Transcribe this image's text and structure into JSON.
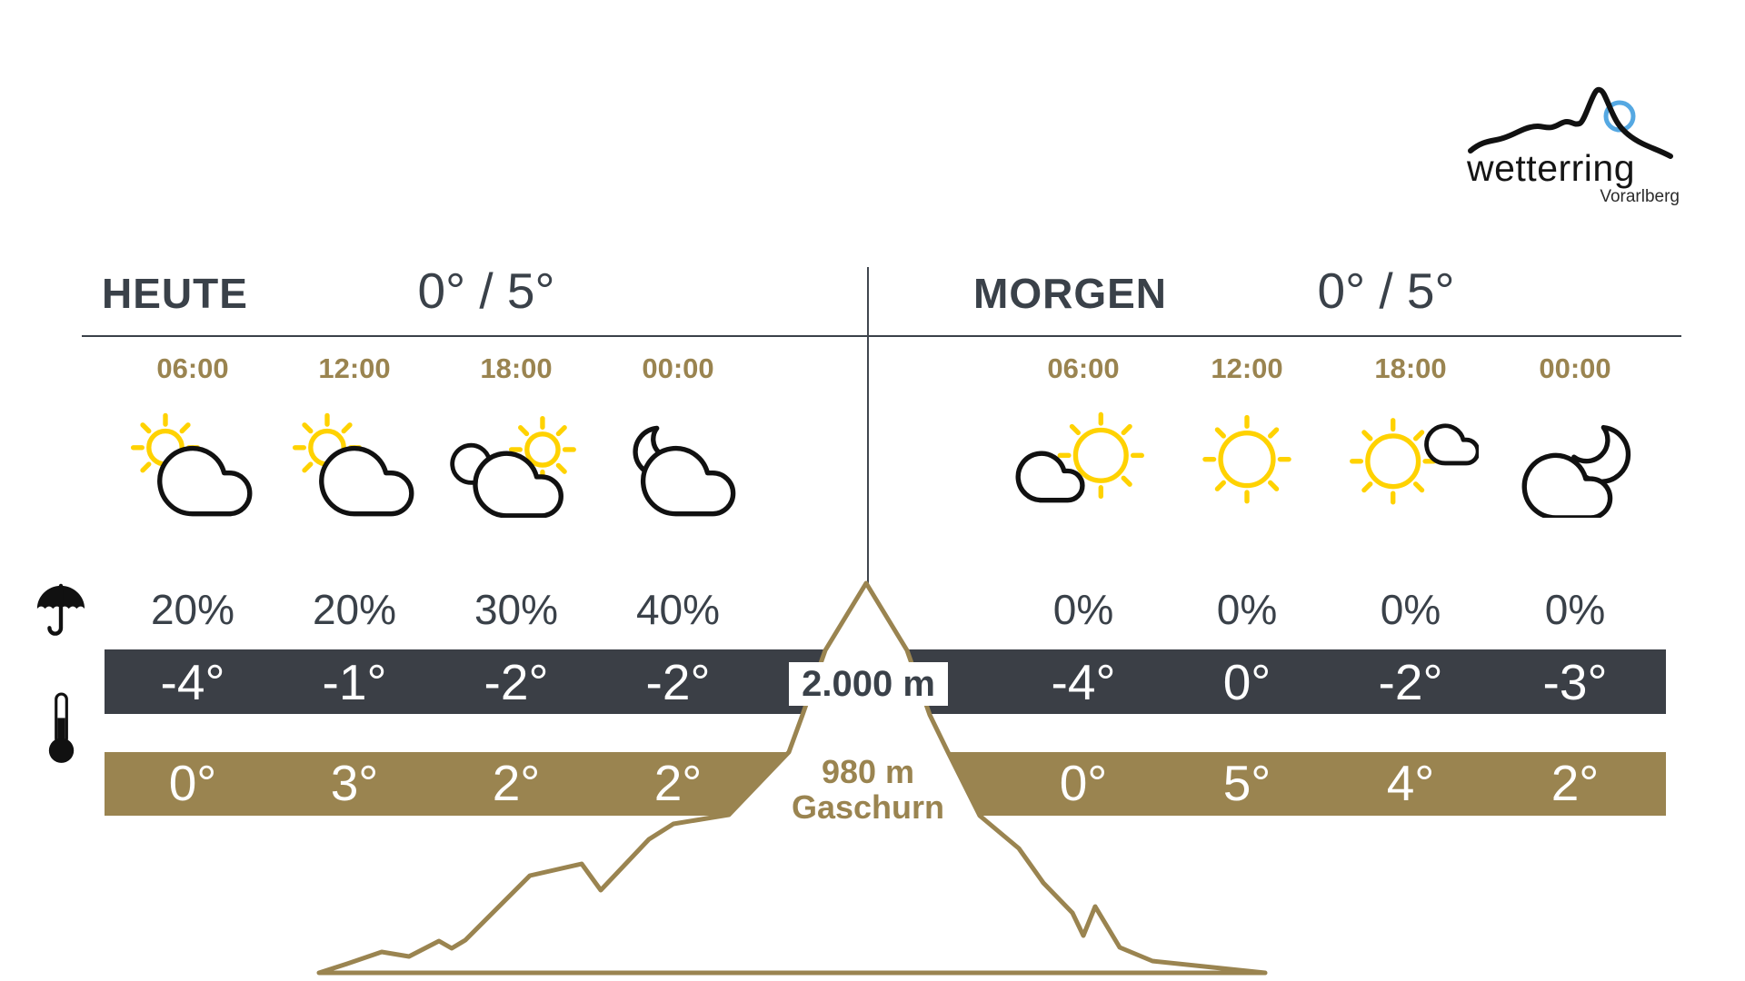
{
  "logo": {
    "brand": "wetterring",
    "region": "Vorarlberg"
  },
  "elevations": {
    "upper": "2.000 m",
    "lower": "980 m",
    "lower_place": "Gaschurn"
  },
  "colors": {
    "gold": "#9a8450",
    "dark_band": "#3b3f46",
    "text": "#3a4149",
    "sun_yellow": "#ffd200",
    "logo_blue": "#55a8e2"
  },
  "row_icons": {
    "precipitation": "umbrella-icon",
    "temperature": "thermometer-icon"
  },
  "sections": [
    {
      "id": "heute",
      "title": "HEUTE",
      "minmax": "0° / 5°",
      "cols": [
        {
          "time": "06:00",
          "icon": "sun-behind-cloud",
          "pop": "20%",
          "temp_upper": "-4°",
          "temp_lower": "0°"
        },
        {
          "time": "12:00",
          "icon": "sun-behind-cloud",
          "pop": "20%",
          "temp_upper": "-1°",
          "temp_lower": "3°"
        },
        {
          "time": "18:00",
          "icon": "sun-behind-clouds",
          "pop": "30%",
          "temp_upper": "-2°",
          "temp_lower": "2°"
        },
        {
          "time": "00:00",
          "icon": "moon-cloud",
          "pop": "40%",
          "temp_upper": "-2°",
          "temp_lower": "2°"
        }
      ]
    },
    {
      "id": "morgen",
      "title": "MORGEN",
      "minmax": "0° / 5°",
      "cols": [
        {
          "time": "06:00",
          "icon": "cloud-sun",
          "pop": "0%",
          "temp_upper": "-4°",
          "temp_lower": "0°"
        },
        {
          "time": "12:00",
          "icon": "sun",
          "pop": "0%",
          "temp_upper": "0°",
          "temp_lower": "5°"
        },
        {
          "time": "18:00",
          "icon": "sun-small-cloud",
          "pop": "0%",
          "temp_upper": "-2°",
          "temp_lower": "4°"
        },
        {
          "time": "00:00",
          "icon": "cloud-moon",
          "pop": "0%",
          "temp_upper": "-3°",
          "temp_lower": "2°"
        }
      ]
    }
  ]
}
